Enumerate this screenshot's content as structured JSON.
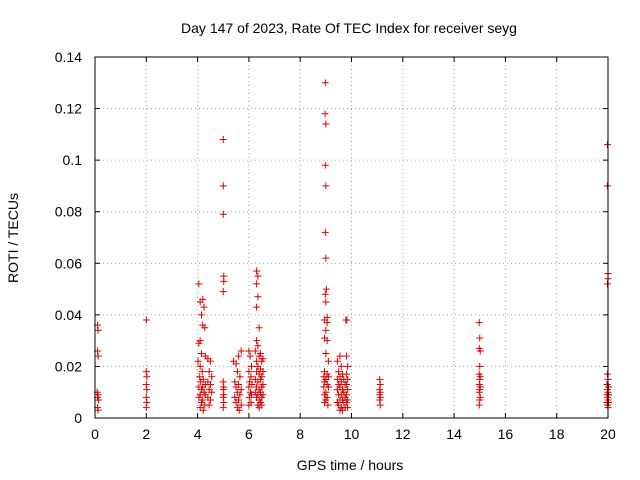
{
  "chart_data": {
    "type": "scatter",
    "title": "Day 147 of 2023, Rate Of TEC Index for receiver seyg",
    "xlabel": "GPS time / hours",
    "ylabel": "ROTI / TECUs",
    "xlim": [
      0,
      20
    ],
    "ylim": [
      0,
      0.14
    ],
    "grid": true,
    "marker": "+",
    "x_ticks": [
      0,
      2,
      4,
      6,
      8,
      10,
      12,
      14,
      16,
      18,
      20
    ],
    "x_tick_labels": [
      "0",
      "2",
      "4",
      "6",
      "8",
      "10",
      "12",
      "14",
      "16",
      "18",
      "20"
    ],
    "y_ticks": [
      0,
      0.02,
      0.04,
      0.06,
      0.08,
      0.1,
      0.12,
      0.14
    ],
    "y_tick_labels": [
      "0",
      "0.02",
      "0.04",
      "0.06",
      "0.08",
      "0.1",
      "0.12",
      "0.14"
    ],
    "colors": {
      "points": "#dd0000",
      "grid": "#a0a0a0",
      "axes": "#000000"
    },
    "series": [
      {
        "name": "ROTI",
        "points": [
          [
            0.1,
            0.036
          ],
          [
            0.12,
            0.034
          ],
          [
            0.1,
            0.026
          ],
          [
            0.12,
            0.024
          ],
          [
            0.08,
            0.01
          ],
          [
            0.12,
            0.009
          ],
          [
            0.1,
            0.008
          ],
          [
            0.14,
            0.007
          ],
          [
            0.1,
            0.004
          ],
          [
            0.12,
            0.003
          ],
          [
            2.0,
            0.038
          ],
          [
            2.0,
            0.018
          ],
          [
            2.02,
            0.016
          ],
          [
            2.0,
            0.013
          ],
          [
            2.02,
            0.011
          ],
          [
            2.0,
            0.008
          ],
          [
            2.02,
            0.006
          ],
          [
            2.0,
            0.004
          ],
          [
            4.05,
            0.052
          ],
          [
            4.1,
            0.045
          ],
          [
            4.2,
            0.046
          ],
          [
            4.25,
            0.043
          ],
          [
            4.15,
            0.04
          ],
          [
            4.2,
            0.036
          ],
          [
            4.28,
            0.035
          ],
          [
            4.1,
            0.03
          ],
          [
            4.05,
            0.029
          ],
          [
            4.15,
            0.025
          ],
          [
            4.02,
            0.022
          ],
          [
            4.3,
            0.024
          ],
          [
            4.1,
            0.02
          ],
          [
            4.18,
            0.018
          ],
          [
            4.08,
            0.016
          ],
          [
            4.22,
            0.015
          ],
          [
            4.12,
            0.014
          ],
          [
            4.3,
            0.013
          ],
          [
            4.05,
            0.012
          ],
          [
            4.2,
            0.012
          ],
          [
            4.15,
            0.011
          ],
          [
            4.25,
            0.01
          ],
          [
            4.1,
            0.009
          ],
          [
            4.3,
            0.009
          ],
          [
            4.05,
            0.008
          ],
          [
            4.2,
            0.007
          ],
          [
            4.15,
            0.006
          ],
          [
            4.28,
            0.005
          ],
          [
            4.1,
            0.004
          ],
          [
            4.22,
            0.003
          ],
          [
            4.4,
            0.023
          ],
          [
            4.5,
            0.022
          ],
          [
            4.45,
            0.018
          ],
          [
            4.55,
            0.016
          ],
          [
            4.4,
            0.014
          ],
          [
            4.5,
            0.013
          ],
          [
            4.45,
            0.011
          ],
          [
            4.55,
            0.01
          ],
          [
            4.4,
            0.008
          ],
          [
            4.5,
            0.007
          ],
          [
            4.45,
            0.005
          ],
          [
            5.0,
            0.108
          ],
          [
            5.0,
            0.09
          ],
          [
            5.0,
            0.079
          ],
          [
            5.02,
            0.055
          ],
          [
            5.02,
            0.053
          ],
          [
            5.0,
            0.049
          ],
          [
            5.0,
            0.014
          ],
          [
            5.02,
            0.012
          ],
          [
            5.0,
            0.011
          ],
          [
            5.02,
            0.009
          ],
          [
            5.0,
            0.008
          ],
          [
            5.02,
            0.006
          ],
          [
            5.0,
            0.004
          ],
          [
            5.4,
            0.022
          ],
          [
            5.5,
            0.021
          ],
          [
            5.6,
            0.024
          ],
          [
            5.7,
            0.026
          ],
          [
            5.55,
            0.018
          ],
          [
            5.65,
            0.016
          ],
          [
            5.45,
            0.014
          ],
          [
            5.6,
            0.013
          ],
          [
            5.5,
            0.012
          ],
          [
            5.7,
            0.011
          ],
          [
            5.55,
            0.01
          ],
          [
            5.65,
            0.009
          ],
          [
            5.45,
            0.008
          ],
          [
            5.6,
            0.007
          ],
          [
            5.5,
            0.006
          ],
          [
            5.7,
            0.005
          ],
          [
            5.55,
            0.004
          ],
          [
            5.62,
            0.003
          ],
          [
            6.0,
            0.026
          ],
          [
            6.05,
            0.024
          ],
          [
            6.1,
            0.02
          ],
          [
            6.0,
            0.018
          ],
          [
            6.08,
            0.016
          ],
          [
            6.03,
            0.014
          ],
          [
            6.12,
            0.013
          ],
          [
            6.0,
            0.012
          ],
          [
            6.06,
            0.01
          ],
          [
            6.1,
            0.009
          ],
          [
            6.02,
            0.008
          ],
          [
            6.08,
            0.006
          ],
          [
            6.0,
            0.005
          ],
          [
            6.3,
            0.057
          ],
          [
            6.35,
            0.055
          ],
          [
            6.3,
            0.052
          ],
          [
            6.35,
            0.047
          ],
          [
            6.3,
            0.043
          ],
          [
            6.4,
            0.035
          ],
          [
            6.3,
            0.03
          ],
          [
            6.35,
            0.028
          ],
          [
            6.25,
            0.026
          ],
          [
            6.45,
            0.025
          ],
          [
            6.4,
            0.024
          ],
          [
            6.55,
            0.023
          ],
          [
            6.3,
            0.022
          ],
          [
            6.5,
            0.022
          ],
          [
            6.35,
            0.02
          ],
          [
            6.45,
            0.019
          ],
          [
            6.3,
            0.018
          ],
          [
            6.55,
            0.018
          ],
          [
            6.4,
            0.017
          ],
          [
            6.5,
            0.016
          ],
          [
            6.25,
            0.015
          ],
          [
            6.45,
            0.015
          ],
          [
            6.35,
            0.014
          ],
          [
            6.55,
            0.013
          ],
          [
            6.3,
            0.012
          ],
          [
            6.5,
            0.012
          ],
          [
            6.4,
            0.011
          ],
          [
            6.25,
            0.01
          ],
          [
            6.45,
            0.01
          ],
          [
            6.35,
            0.009
          ],
          [
            6.55,
            0.009
          ],
          [
            6.3,
            0.008
          ],
          [
            6.5,
            0.008
          ],
          [
            6.4,
            0.007
          ],
          [
            6.45,
            0.006
          ],
          [
            6.35,
            0.005
          ],
          [
            6.5,
            0.005
          ],
          [
            6.4,
            0.004
          ],
          [
            8.98,
            0.13
          ],
          [
            8.97,
            0.118
          ],
          [
            9.0,
            0.114
          ],
          [
            8.98,
            0.098
          ],
          [
            9.0,
            0.09
          ],
          [
            8.98,
            0.072
          ],
          [
            9.0,
            0.062
          ],
          [
            9.02,
            0.05
          ],
          [
            8.98,
            0.048
          ],
          [
            9.0,
            0.045
          ],
          [
            9.05,
            0.039
          ],
          [
            8.95,
            0.038
          ],
          [
            9.05,
            0.037
          ],
          [
            9.0,
            0.034
          ],
          [
            8.95,
            0.031
          ],
          [
            9.05,
            0.03
          ],
          [
            9.0,
            0.025
          ],
          [
            9.1,
            0.022
          ],
          [
            8.95,
            0.018
          ],
          [
            9.05,
            0.017
          ],
          [
            8.92,
            0.016
          ],
          [
            9.1,
            0.016
          ],
          [
            9.0,
            0.015
          ],
          [
            8.95,
            0.014
          ],
          [
            9.05,
            0.013
          ],
          [
            8.92,
            0.012
          ],
          [
            9.1,
            0.012
          ],
          [
            9.0,
            0.01
          ],
          [
            8.95,
            0.009
          ],
          [
            9.05,
            0.008
          ],
          [
            9.0,
            0.007
          ],
          [
            8.95,
            0.006
          ],
          [
            9.08,
            0.005
          ],
          [
            9.45,
            0.022
          ],
          [
            9.55,
            0.024
          ],
          [
            9.6,
            0.02
          ],
          [
            9.5,
            0.018
          ],
          [
            9.65,
            0.017
          ],
          [
            9.55,
            0.016
          ],
          [
            9.45,
            0.015
          ],
          [
            9.7,
            0.015
          ],
          [
            9.6,
            0.014
          ],
          [
            9.5,
            0.013
          ],
          [
            9.75,
            0.013
          ],
          [
            9.55,
            0.012
          ],
          [
            9.65,
            0.011
          ],
          [
            9.45,
            0.011
          ],
          [
            9.7,
            0.01
          ],
          [
            9.5,
            0.009
          ],
          [
            9.6,
            0.009
          ],
          [
            9.75,
            0.008
          ],
          [
            9.55,
            0.007
          ],
          [
            9.65,
            0.007
          ],
          [
            9.45,
            0.006
          ],
          [
            9.7,
            0.006
          ],
          [
            9.5,
            0.005
          ],
          [
            9.6,
            0.004
          ],
          [
            9.75,
            0.004
          ],
          [
            9.55,
            0.003
          ],
          [
            9.65,
            0.003
          ],
          [
            9.78,
            0.038
          ],
          [
            9.82,
            0.038
          ],
          [
            9.8,
            0.024
          ],
          [
            9.85,
            0.02
          ],
          [
            9.8,
            0.017
          ],
          [
            9.85,
            0.015
          ],
          [
            9.8,
            0.013
          ],
          [
            9.85,
            0.011
          ],
          [
            9.8,
            0.009
          ],
          [
            9.85,
            0.007
          ],
          [
            9.8,
            0.006
          ],
          [
            9.85,
            0.004
          ],
          [
            11.1,
            0.015
          ],
          [
            11.12,
            0.013
          ],
          [
            11.1,
            0.011
          ],
          [
            11.12,
            0.01
          ],
          [
            11.1,
            0.009
          ],
          [
            11.12,
            0.008
          ],
          [
            11.1,
            0.007
          ],
          [
            11.12,
            0.005
          ],
          [
            14.98,
            0.037
          ],
          [
            15.0,
            0.031
          ],
          [
            14.98,
            0.027
          ],
          [
            15.02,
            0.026
          ],
          [
            15.0,
            0.02
          ],
          [
            14.98,
            0.017
          ],
          [
            15.02,
            0.016
          ],
          [
            15.0,
            0.015
          ],
          [
            14.98,
            0.013
          ],
          [
            15.02,
            0.012
          ],
          [
            15.0,
            0.011
          ],
          [
            14.98,
            0.01
          ],
          [
            15.02,
            0.008
          ],
          [
            15.0,
            0.007
          ],
          [
            14.98,
            0.005
          ],
          [
            19.98,
            0.106
          ],
          [
            19.98,
            0.09
          ],
          [
            20.0,
            0.056
          ],
          [
            20.0,
            0.054
          ],
          [
            19.98,
            0.052
          ],
          [
            19.98,
            0.017
          ],
          [
            20.0,
            0.015
          ],
          [
            19.96,
            0.013
          ],
          [
            20.02,
            0.012
          ],
          [
            19.98,
            0.011
          ],
          [
            20.0,
            0.01
          ],
          [
            19.96,
            0.009
          ],
          [
            20.02,
            0.009
          ],
          [
            19.98,
            0.008
          ],
          [
            20.0,
            0.007
          ],
          [
            19.96,
            0.006
          ],
          [
            20.02,
            0.006
          ],
          [
            19.98,
            0.005
          ],
          [
            20.0,
            0.004
          ]
        ]
      }
    ]
  }
}
